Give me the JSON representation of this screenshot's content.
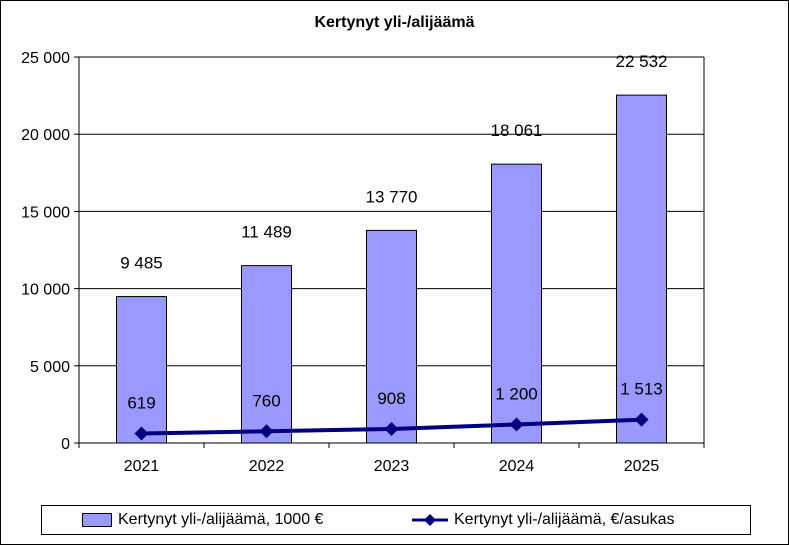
{
  "chart_data": {
    "type": "bar",
    "title": "Kertynyt yli-/alijäämä",
    "categories": [
      "2021",
      "2022",
      "2023",
      "2024",
      "2025"
    ],
    "ylim": [
      0,
      25000
    ],
    "yticks": [
      "0",
      "5 000",
      "10 000",
      "15 000",
      "20 000",
      "25 000"
    ],
    "grid": true,
    "legend_position": "bottom",
    "series": [
      {
        "name": "Kertynyt yli-/alijäämä,  1000 €",
        "type": "bar",
        "color": "#9999ff",
        "values": [
          9485,
          11489,
          13770,
          18061,
          22532
        ],
        "labels": [
          "9 485",
          "11 489",
          "13 770",
          "18 061",
          "22 532"
        ]
      },
      {
        "name": "Kertynyt yli-/alijäämä, €/asukas",
        "type": "line",
        "color": "#000080",
        "values": [
          619,
          760,
          908,
          1200,
          1513
        ],
        "labels": [
          "619",
          "760",
          "908",
          "1 200",
          "1 513"
        ]
      }
    ]
  }
}
